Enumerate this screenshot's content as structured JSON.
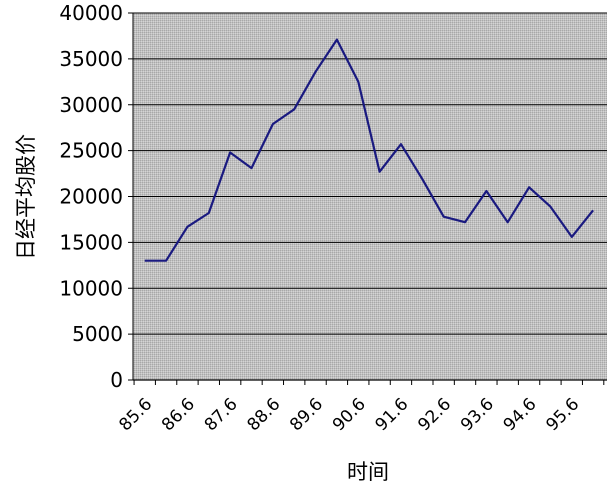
{
  "chart_data": {
    "type": "line",
    "title": "",
    "xlabel": "时间",
    "ylabel": "日经平均股价",
    "ylim": [
      0,
      40000
    ],
    "yticks": [
      0,
      5000,
      10000,
      15000,
      20000,
      25000,
      30000,
      35000,
      40000
    ],
    "xtick_labels": [
      "85.6",
      "86.6",
      "87.6",
      "88.6",
      "89.6",
      "90.6",
      "91.6",
      "92.6",
      "93.6",
      "94.6",
      "95.6"
    ],
    "grid": true,
    "legend": "none",
    "colors": {
      "line": "#1a1a80",
      "plot_background": "#c0c0c0",
      "grid": "#000000"
    },
    "series": [
      {
        "values": [
          13000,
          13000,
          16700,
          18200,
          24800,
          23100,
          27900,
          29500,
          33600,
          37100,
          32500,
          22700,
          25700,
          21900,
          17800,
          17200,
          20600,
          17200,
          21000,
          18900,
          15600,
          18500
        ]
      }
    ]
  }
}
